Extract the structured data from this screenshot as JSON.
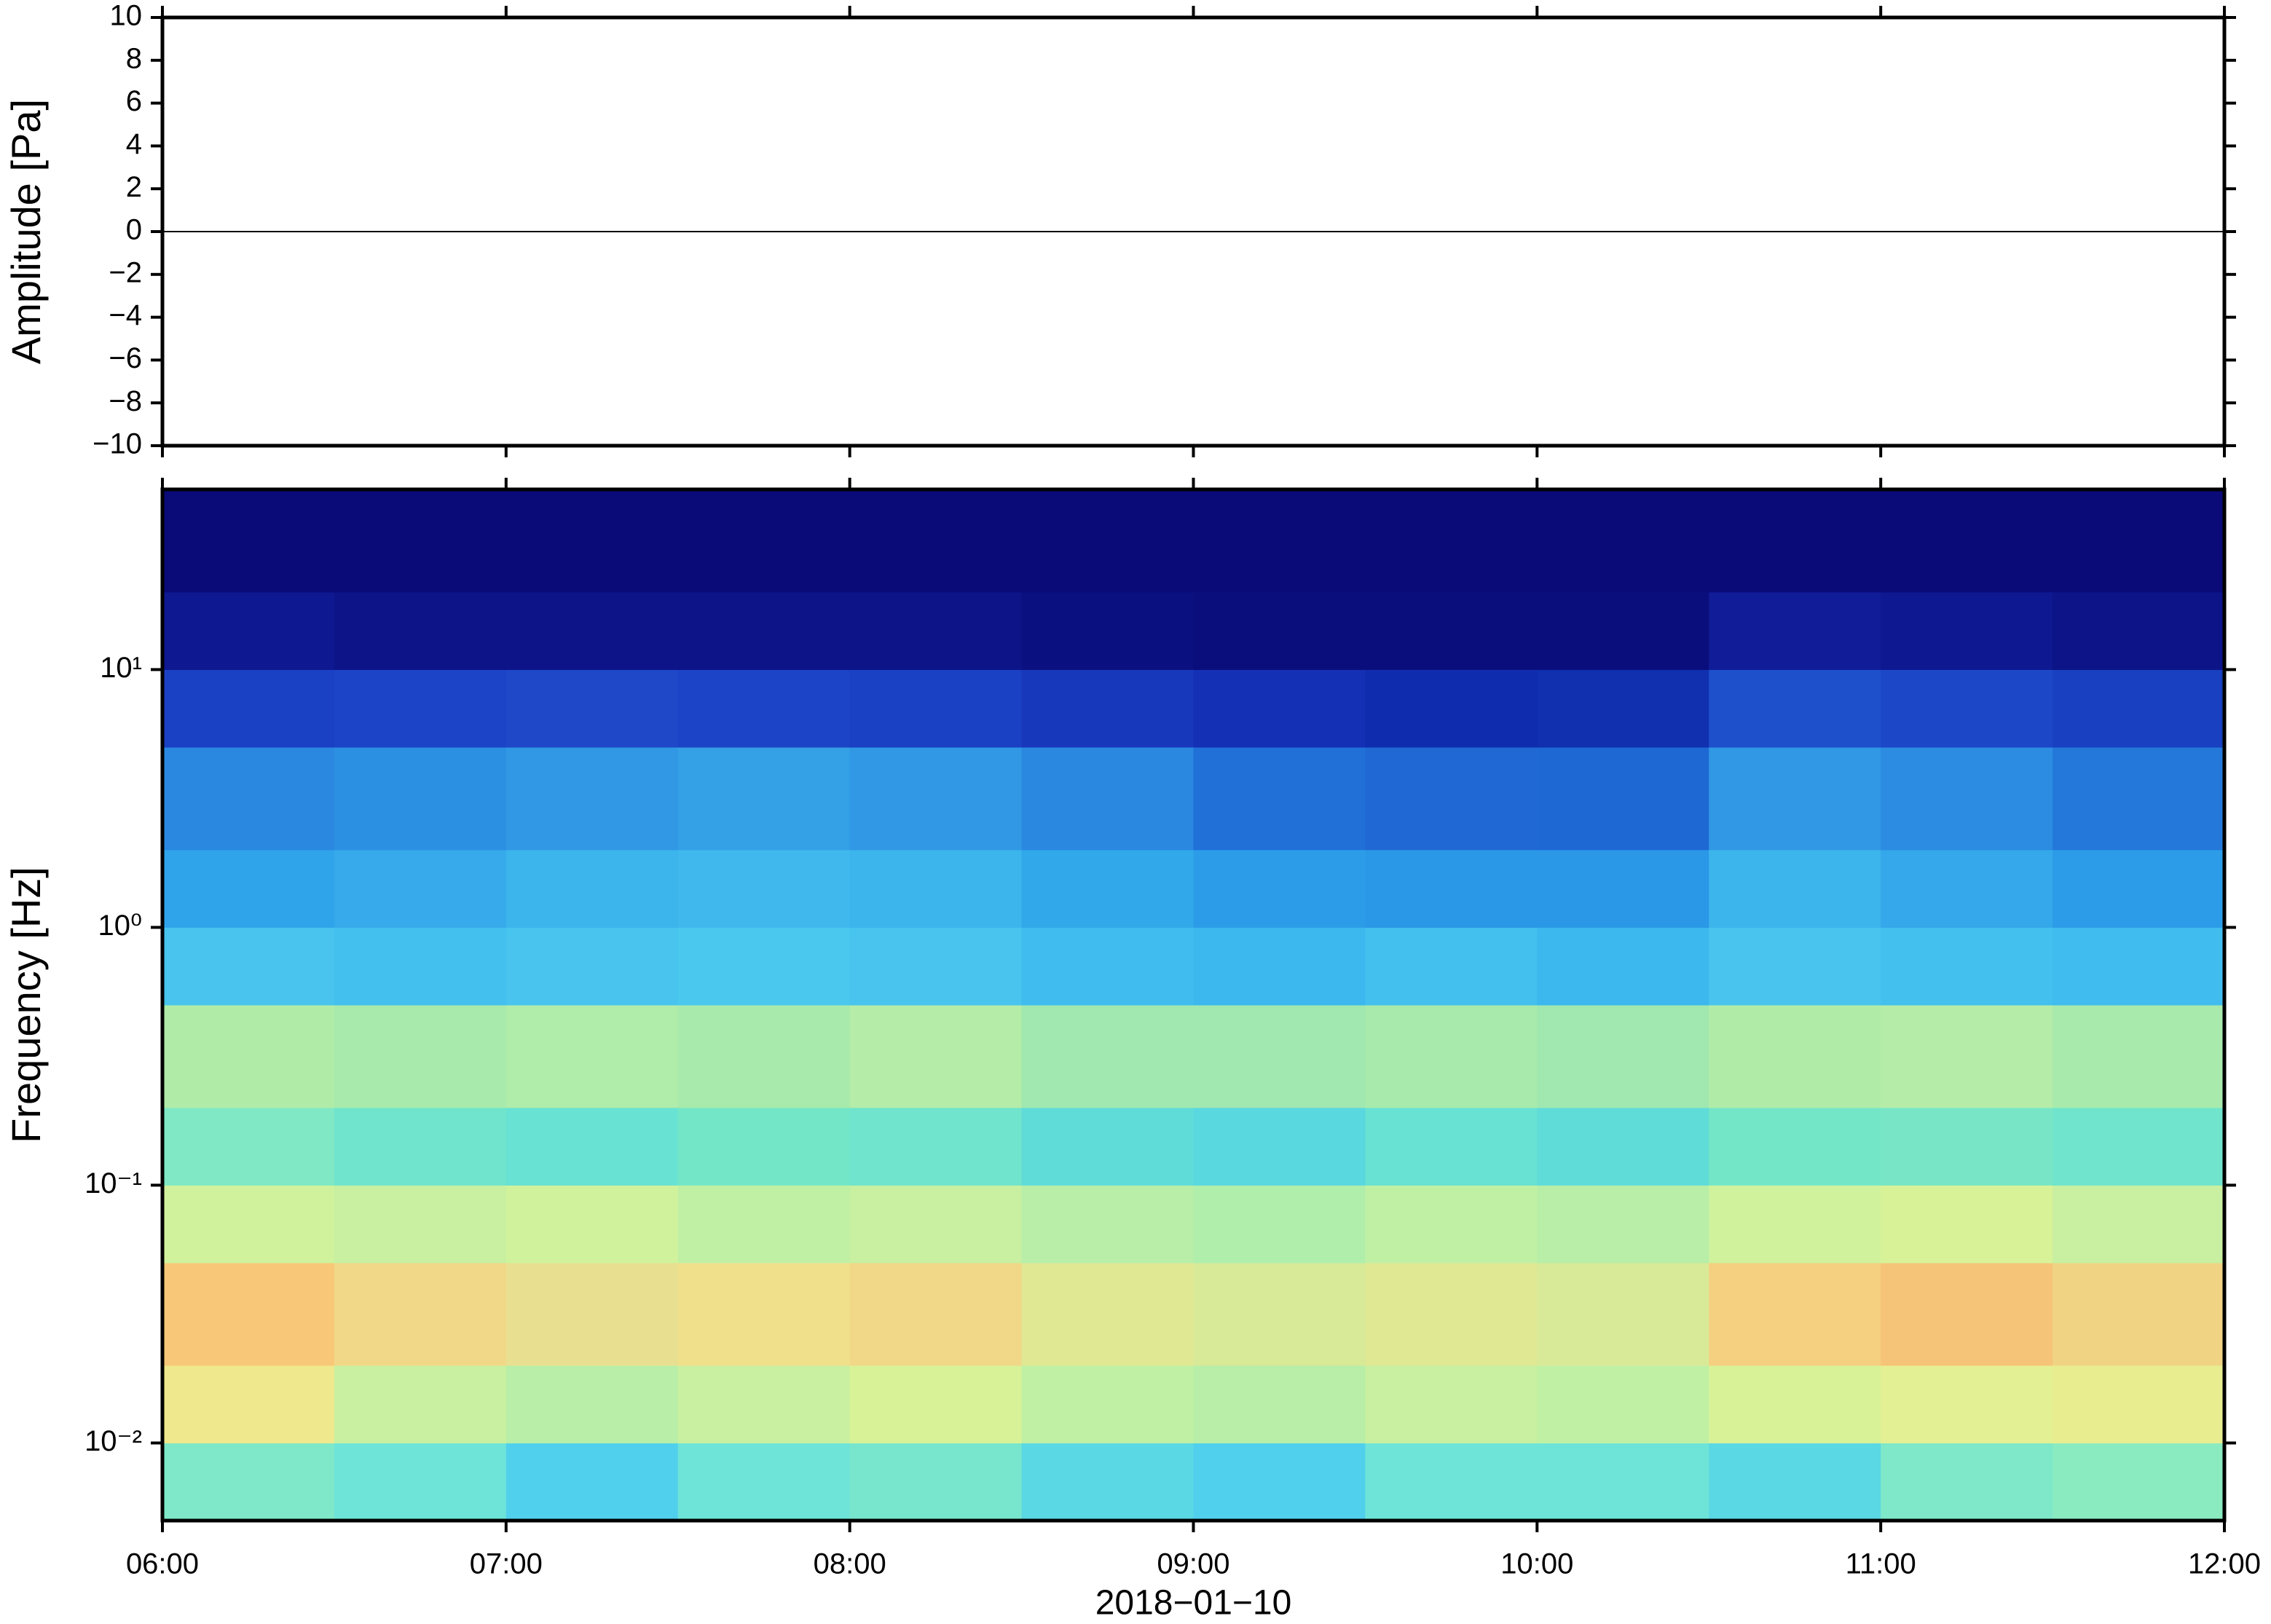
{
  "chart_data": [
    {
      "type": "line",
      "ylabel": "Amplitude [Pa]",
      "x": [
        "06:00",
        "12:00"
      ],
      "values": [
        0,
        0
      ],
      "color": "#000000",
      "xlim": [
        "06:00",
        "12:00"
      ],
      "ylim": [
        -10,
        10
      ],
      "yticks": [
        {
          "value": -10,
          "label": "−10"
        },
        {
          "value": -8,
          "label": "−8"
        },
        {
          "value": -6,
          "label": "−6"
        },
        {
          "value": -4,
          "label": "−4"
        },
        {
          "value": -2,
          "label": "−2"
        },
        0,
        2,
        4,
        6,
        8,
        10
      ]
    },
    {
      "type": "heatmap",
      "ylabel": "Frequency [Hz]",
      "xlabel": "2018−01−10",
      "xlim": [
        "06:00",
        "12:00"
      ],
      "xticks": [
        "06:00",
        "07:00",
        "08:00",
        "09:00",
        "10:00",
        "11:00",
        "12:00"
      ],
      "ylim": [
        0.005,
        50
      ],
      "log_y": true,
      "yticks": [
        {
          "value": 0.01,
          "label": "10⁻²"
        },
        {
          "value": 0.1,
          "label": "10⁻¹"
        },
        {
          "value": 1,
          "label": "10⁰"
        },
        {
          "value": 10,
          "label": "10¹"
        }
      ],
      "x_edges": [
        "06:00",
        "06:30",
        "07:00",
        "07:30",
        "08:00",
        "08:30",
        "09:00",
        "09:30",
        "10:00",
        "10:30",
        "11:00",
        "11:30",
        "12:00"
      ],
      "y_edges": [
        0.005,
        0.01,
        0.02,
        0.05,
        0.1,
        0.2,
        0.5,
        1,
        2,
        5,
        10,
        20,
        50
      ],
      "colors": [
        [
          "#7ee8c8",
          "#6ee4d8",
          "#50d0ec",
          "#6ee4d8",
          "#78e6cc",
          "#5ad8e4",
          "#50d0ec",
          "#6ee4d8",
          "#6ee4d8",
          "#5ad8e4",
          "#7ee8c8",
          "#8aeac0"
        ],
        [
          "#f0e88c",
          "#c8f0a0",
          "#b8eea8",
          "#c8f0a0",
          "#d8f298",
          "#c0f0a4",
          "#b8eea8",
          "#c8f0a0",
          "#c0f0a4",
          "#d8f298",
          "#e4f094",
          "#e8ee90"
        ],
        [
          "#f8c878",
          "#f0d888",
          "#e8e090",
          "#f0e08c",
          "#f0d888",
          "#e0e894",
          "#d8ea98",
          "#e0e894",
          "#d8ea98",
          "#f4d080",
          "#f6c478",
          "#f0d484"
        ],
        [
          "#d0f29c",
          "#c8f0a0",
          "#d0f29c",
          "#c0f0a4",
          "#c8f0a0",
          "#b8eea8",
          "#b0eeac",
          "#c0f0a4",
          "#b8eea8",
          "#d0f29c",
          "#d8f298",
          "#c8f0a0"
        ],
        [
          "#80e8c4",
          "#70e4cc",
          "#68e2d2",
          "#74e6c8",
          "#70e4cc",
          "#60dcd8",
          "#5ad8e0",
          "#68e2d2",
          "#60dcd8",
          "#74e6c8",
          "#78e6c6",
          "#70e4cc"
        ],
        [
          "#b0eca8",
          "#a8eaac",
          "#b0ecaa",
          "#a8eaac",
          "#b4eca8",
          "#a0e8b0",
          "#a0e8b0",
          "#a8eaac",
          "#a0e8b0",
          "#b0eca8",
          "#b4eca8",
          "#a8eaac"
        ],
        [
          "#48c4ee",
          "#44c0ee",
          "#48c4ee",
          "#4ac8ee",
          "#48c4ee",
          "#40bcee",
          "#3cb8ee",
          "#44c0ee",
          "#3cb8ee",
          "#48c4ee",
          "#44c0ee",
          "#40bcee"
        ],
        [
          "#30a4ea",
          "#36aaea",
          "#3cb4ec",
          "#40b8ee",
          "#3cb4ec",
          "#30a8ea",
          "#2c9ce8",
          "#2a98e6",
          "#2a98e6",
          "#3cb4ec",
          "#34a8ea",
          "#2c9ce8"
        ],
        [
          "#2a88e0",
          "#2c90e2",
          "#3098e4",
          "#34a0e6",
          "#3098e4",
          "#2a88e0",
          "#2070d8",
          "#2068d4",
          "#1e68d4",
          "#3098e4",
          "#2c8ce2",
          "#2478da"
        ],
        [
          "#1a40c4",
          "#1c44c6",
          "#1e48c8",
          "#1c44c6",
          "#1a40c4",
          "#1838bc",
          "#1430b4",
          "#102cae",
          "#1030b0",
          "#1e50cc",
          "#1c48c8",
          "#1840c0"
        ],
        [
          "#0e1890",
          "#0c1488",
          "#0c1488",
          "#0c1488",
          "#0c1488",
          "#0a1080",
          "#0a0e7c",
          "#0a0e7c",
          "#0a0e7c",
          "#101c98",
          "#0e1890",
          "#0c1488"
        ],
        [
          "#0a0a78",
          "#0a0a78",
          "#0a0a78",
          "#0a0a78",
          "#0a0a78",
          "#0a0a78",
          "#0a0a78",
          "#0a0a78",
          "#0a0a78",
          "#0a0a78",
          "#0a0a78",
          "#0a0a78"
        ]
      ]
    }
  ]
}
